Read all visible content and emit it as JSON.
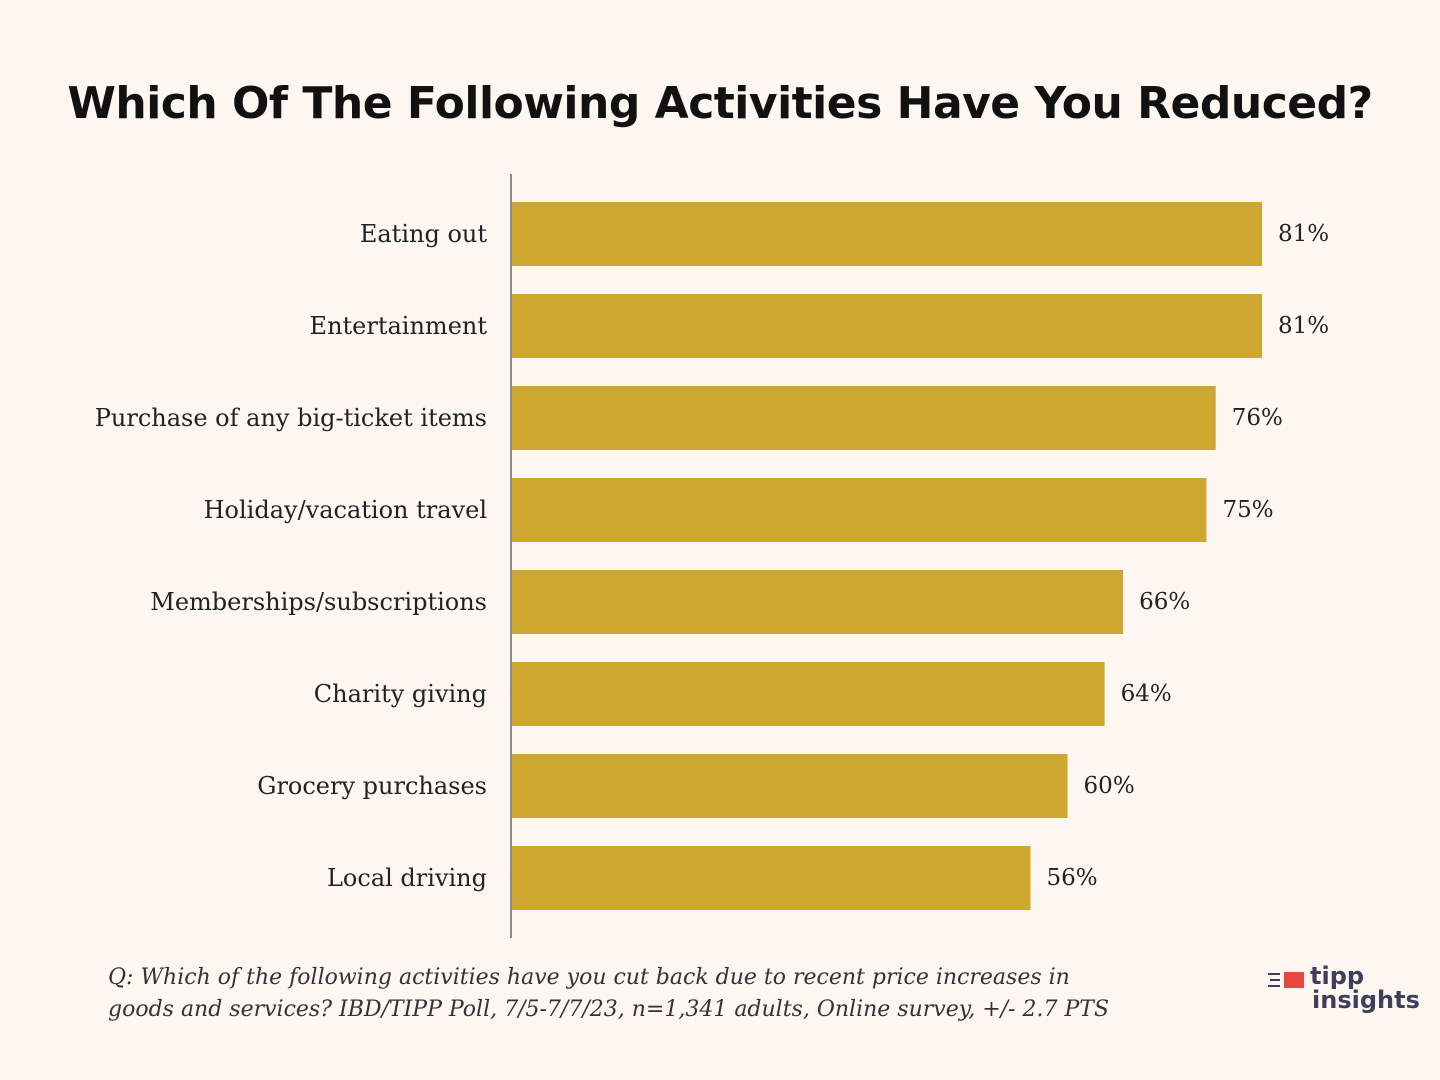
{
  "chart_data": {
    "type": "bar",
    "orientation": "horizontal",
    "title": "Which Of The Following Activities Have You Reduced?",
    "categories": [
      "Eating out",
      "Entertainment",
      "Purchase of any big-ticket items",
      "Holiday/vacation travel",
      "Memberships/subscriptions",
      "Charity giving",
      "Grocery purchases",
      "Local driving"
    ],
    "values": [
      81,
      81,
      76,
      75,
      66,
      64,
      60,
      56
    ],
    "value_labels": [
      "81%",
      "81%",
      "76%",
      "75%",
      "66%",
      "64%",
      "60%",
      "56%"
    ],
    "xlim": [
      0,
      100
    ],
    "bar_color": "#cfa832",
    "axis_color": "#8a8a8a",
    "grid": false
  },
  "footnote": {
    "line1": "Q:  Which of the following activities have you cut back due to recent price increases in",
    "line2": "goods and services? IBD/TIPP Poll, 7/5-7/7/23, n=1,341 adults, Online survey, +/- 2.7 PTS"
  },
  "logo": {
    "word_top": "tipp",
    "word_bottom": "insights",
    "mark_color": "#e8473f",
    "text_color": "#3d3f5c"
  }
}
